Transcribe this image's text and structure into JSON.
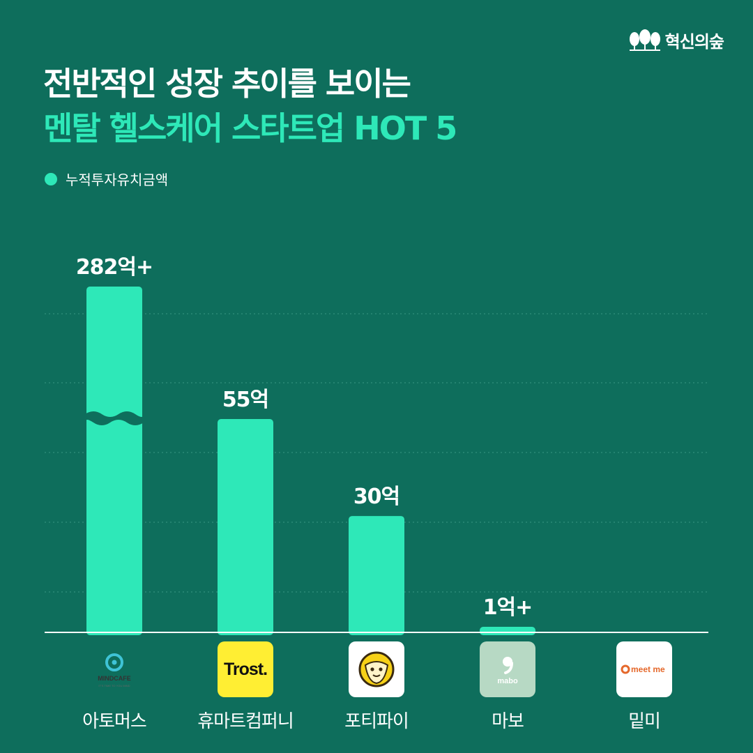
{
  "brand": {
    "name": "혁신의숲",
    "icon": "forest-icon"
  },
  "header": {
    "title_line1": "전반적인 성장 추이를 보이는",
    "title_line2": "멘탈 헬스케어 스타트업 HOT 5"
  },
  "legend": {
    "label": "누적투자유치금액",
    "color": "#2ee8b8"
  },
  "colors": {
    "background": "#0e6e5c",
    "bar": "#2ee8b8",
    "accent": "#2ee8b8"
  },
  "chart_data": {
    "type": "bar",
    "categories": [
      "아토머스",
      "휴마트컴퍼니",
      "포티파이",
      "마보",
      "밑미"
    ],
    "values": [
      282,
      55,
      30,
      1,
      0
    ],
    "value_labels": [
      "282억+",
      "55억",
      "30억",
      "1억+",
      ""
    ],
    "axis_break": {
      "category": "아토머스"
    },
    "grid": "horizontal-dotted",
    "legend_position": "top-left",
    "xlabel": "",
    "ylabel": ""
  },
  "logos": [
    {
      "icon": "mindcafe-logo-icon",
      "text": "MINDCAFE",
      "subtext": "IT'S TIME TO YOU MIND",
      "bg": "#ffffff"
    },
    {
      "icon": "trost-logo-icon",
      "text": "Trost.",
      "bg": "#ffee33"
    },
    {
      "icon": "fortifi-logo-icon",
      "text": "",
      "bg": "#ffffff"
    },
    {
      "icon": "mabo-logo-icon",
      "text": "mabo",
      "bg": "#b7d9c4"
    },
    {
      "icon": "meetme-logo-icon",
      "text": "meet me",
      "bg": "#ffffff"
    }
  ]
}
